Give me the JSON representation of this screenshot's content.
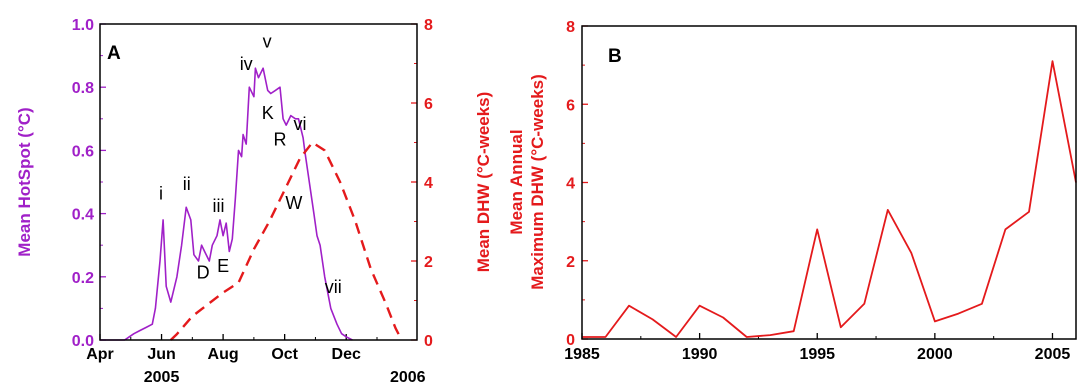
{
  "chart_data": [
    {
      "panel": "A",
      "type": "line",
      "x_ticks": [
        {
          "label": "Apr",
          "m": 0
        },
        {
          "label": "Jun",
          "m": 2
        },
        {
          "label": "Aug",
          "m": 4
        },
        {
          "label": "Oct",
          "m": 6
        },
        {
          "label": "Dec",
          "m": 8
        }
      ],
      "x_year_labels": [
        {
          "label": "2005",
          "m": 2
        },
        {
          "label": "2006",
          "m": 10
        }
      ],
      "xlim": [
        0,
        10.3
      ],
      "ylabel_left": "Mean HotSpot (°C)",
      "ylabel_right": "Mean DHW (°C-weeks)",
      "ylim_left": [
        0,
        1.0
      ],
      "ylim_right": [
        0,
        8
      ],
      "yticks_left": [
        "0.0",
        "0.2",
        "0.4",
        "0.6",
        "0.8",
        "1.0"
      ],
      "yticks_right": [
        "0",
        "2",
        "4",
        "6",
        "8"
      ],
      "colors": {
        "hotspot": "#a020c8",
        "dhw": "#e41a1c"
      },
      "series": [
        {
          "key": "hotspot",
          "axis": "left",
          "style": "solid",
          "points": [
            [
              0,
              0
            ],
            [
              0.8,
              0
            ],
            [
              1.1,
              0.02
            ],
            [
              1.3,
              0.03
            ],
            [
              1.5,
              0.04
            ],
            [
              1.7,
              0.05
            ],
            [
              1.8,
              0.1
            ],
            [
              1.95,
              0.25
            ],
            [
              2.05,
              0.38
            ],
            [
              2.15,
              0.17
            ],
            [
              2.3,
              0.12
            ],
            [
              2.5,
              0.2
            ],
            [
              2.65,
              0.3
            ],
            [
              2.8,
              0.42
            ],
            [
              2.95,
              0.38
            ],
            [
              3.05,
              0.27
            ],
            [
              3.2,
              0.25
            ],
            [
              3.3,
              0.3
            ],
            [
              3.4,
              0.28
            ],
            [
              3.55,
              0.25
            ],
            [
              3.65,
              0.3
            ],
            [
              3.8,
              0.33
            ],
            [
              3.9,
              0.38
            ],
            [
              4.0,
              0.33
            ],
            [
              4.1,
              0.37
            ],
            [
              4.2,
              0.28
            ],
            [
              4.3,
              0.32
            ],
            [
              4.4,
              0.45
            ],
            [
              4.5,
              0.6
            ],
            [
              4.6,
              0.58
            ],
            [
              4.65,
              0.65
            ],
            [
              4.75,
              0.62
            ],
            [
              4.85,
              0.8
            ],
            [
              5.0,
              0.77
            ],
            [
              5.05,
              0.86
            ],
            [
              5.15,
              0.83
            ],
            [
              5.3,
              0.86
            ],
            [
              5.45,
              0.79
            ],
            [
              5.55,
              0.78
            ],
            [
              5.7,
              0.79
            ],
            [
              5.85,
              0.8
            ],
            [
              5.95,
              0.7
            ],
            [
              6.05,
              0.68
            ],
            [
              6.2,
              0.71
            ],
            [
              6.35,
              0.7
            ],
            [
              6.45,
              0.7
            ],
            [
              6.6,
              0.64
            ],
            [
              6.65,
              0.6
            ],
            [
              6.8,
              0.5
            ],
            [
              6.95,
              0.4
            ],
            [
              7.05,
              0.33
            ],
            [
              7.15,
              0.3
            ],
            [
              7.3,
              0.2
            ],
            [
              7.5,
              0.1
            ],
            [
              7.7,
              0.05
            ],
            [
              7.85,
              0.02
            ],
            [
              8.0,
              0.01
            ],
            [
              8.2,
              0
            ]
          ]
        },
        {
          "key": "dhw",
          "axis": "right",
          "style": "dashed",
          "points": [
            [
              2.3,
              0
            ],
            [
              2.5,
              0.15
            ],
            [
              3.0,
              0.6
            ],
            [
              3.5,
              0.9
            ],
            [
              4.0,
              1.2
            ],
            [
              4.5,
              1.45
            ],
            [
              5.0,
              2.3
            ],
            [
              5.5,
              3.0
            ],
            [
              6.0,
              3.8
            ],
            [
              6.5,
              4.6
            ],
            [
              6.9,
              5.0
            ],
            [
              7.3,
              4.8
            ],
            [
              7.8,
              4.0
            ],
            [
              8.3,
              3.0
            ],
            [
              8.8,
              1.8
            ],
            [
              9.3,
              0.9
            ],
            [
              9.6,
              0.3
            ],
            [
              9.8,
              0
            ]
          ]
        }
      ],
      "annotations": [
        {
          "text": "A",
          "x": 0.45,
          "y": 0.89,
          "panel_label": true
        },
        {
          "text": "i",
          "x": 1.98,
          "y": 0.445
        },
        {
          "text": "ii",
          "x": 2.82,
          "y": 0.475
        },
        {
          "text": "iii",
          "x": 3.85,
          "y": 0.405
        },
        {
          "text": "D",
          "x": 3.35,
          "y": 0.195
        },
        {
          "text": "E",
          "x": 4.0,
          "y": 0.215
        },
        {
          "text": "iv",
          "x": 4.75,
          "y": 0.855
        },
        {
          "text": "v",
          "x": 5.43,
          "y": 0.925
        },
        {
          "text": "K",
          "x": 5.45,
          "y": 0.7
        },
        {
          "text": "R",
          "x": 5.85,
          "y": 0.615
        },
        {
          "text": "vi",
          "x": 6.5,
          "y": 0.665
        },
        {
          "text": "W",
          "x": 6.3,
          "y": 0.415
        },
        {
          "text": "vii",
          "x": 7.58,
          "y": 0.148
        }
      ]
    },
    {
      "panel": "B",
      "type": "line",
      "xlim": [
        1985,
        2006
      ],
      "xticks": [
        1985,
        1990,
        1995,
        2000,
        2005
      ],
      "ylim": [
        0,
        8
      ],
      "yticks": [
        0,
        2,
        4,
        6,
        8
      ],
      "ylabel_line1": "Mean Annual",
      "ylabel_line2": "Maximum DHW (°C-weeks)",
      "color": "#e41a1c",
      "x": [
        1985,
        1986,
        1987,
        1988,
        1989,
        1990,
        1991,
        1992,
        1993,
        1994,
        1995,
        1996,
        1997,
        1998,
        1999,
        2000,
        2001,
        2002,
        2003,
        2004,
        2005,
        2006
      ],
      "values": [
        0.05,
        0.05,
        0.85,
        0.5,
        0.05,
        0.85,
        0.55,
        0.05,
        0.1,
        0.2,
        2.8,
        0.3,
        0.9,
        3.3,
        2.2,
        0.45,
        0.65,
        0.9,
        2.8,
        3.25,
        7.1,
        4.0
      ]
    }
  ]
}
